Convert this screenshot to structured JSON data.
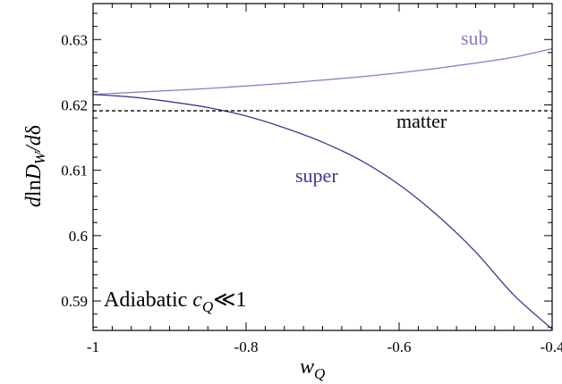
{
  "chart_data": {
    "type": "line",
    "xlabel": "w_Q",
    "ylabel": "d ln D_W / dδ",
    "xlim": [
      -1,
      -0.4
    ],
    "ylim": [
      0.5855,
      0.6355
    ],
    "x_ticks": [
      -1,
      -0.8,
      -0.6,
      -0.4
    ],
    "x_tick_labels": [
      "-1",
      "-0.8",
      "-0.6",
      "-0.4"
    ],
    "y_ticks": [
      0.59,
      0.6,
      0.61,
      0.62,
      0.63
    ],
    "y_tick_labels": [
      "0.59",
      "0.6",
      "0.61",
      "0.62",
      "0.63"
    ],
    "grid": false,
    "annotation": "Adiabatic c_Q≪1",
    "annotation_parts": {
      "prefix": "Adiabatic ",
      "var": "c",
      "sub": "Q",
      "suffix": "≪1"
    },
    "series": [
      {
        "label": "sub",
        "color": "#8480c4",
        "style": "solid",
        "x": [
          -1.0,
          -0.95,
          -0.9,
          -0.85,
          -0.8,
          -0.75,
          -0.7,
          -0.65,
          -0.6,
          -0.55,
          -0.5,
          -0.45,
          -0.4
        ],
        "y": [
          0.6216,
          0.6219,
          0.6222,
          0.6225,
          0.6229,
          0.6233,
          0.6238,
          0.6243,
          0.6249,
          0.6256,
          0.6264,
          0.6273,
          0.6286
        ]
      },
      {
        "label": "super",
        "color": "#3a3a8c",
        "style": "solid",
        "x": [
          -1.0,
          -0.95,
          -0.9,
          -0.85,
          -0.8,
          -0.75,
          -0.7,
          -0.65,
          -0.6,
          -0.55,
          -0.5,
          -0.45,
          -0.4
        ],
        "y": [
          0.6216,
          0.6212,
          0.6205,
          0.6196,
          0.6183,
          0.6165,
          0.6143,
          0.6115,
          0.6078,
          0.6031,
          0.5975,
          0.5909,
          0.5857
        ]
      },
      {
        "label": "matter",
        "color": "#000000",
        "style": "dashed",
        "x": [
          -1.0,
          -0.4
        ],
        "y": [
          0.6191,
          0.6191
        ]
      }
    ]
  }
}
